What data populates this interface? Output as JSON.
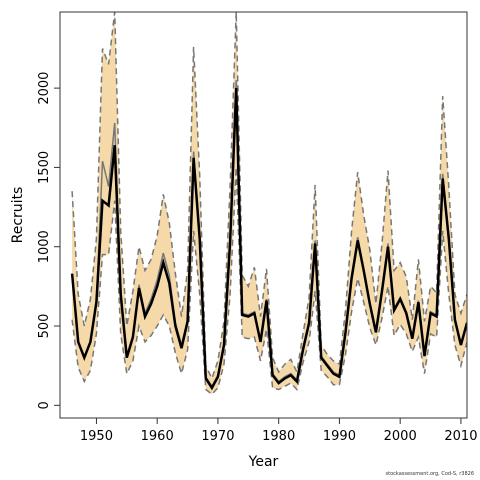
{
  "chart_data": {
    "type": "line",
    "xlabel": "Year",
    "ylabel": "Recruits",
    "xlim": [
      1944,
      2011
    ],
    "ylim": [
      -80,
      2480
    ],
    "x_ticks": [
      1950,
      1960,
      1970,
      1980,
      1990,
      2000,
      2010
    ],
    "y_ticks": [
      0,
      500,
      1000,
      1500,
      2000
    ],
    "grid": false,
    "colors": {
      "band": "#f5d9a8",
      "median": "#000000",
      "mean": "#777777",
      "ci": "#777777"
    },
    "years": [
      1946,
      1947,
      1948,
      1949,
      1950,
      1951,
      1952,
      1953,
      1954,
      1955,
      1956,
      1957,
      1958,
      1959,
      1960,
      1961,
      1962,
      1963,
      1964,
      1965,
      1966,
      1967,
      1968,
      1969,
      1970,
      1971,
      1972,
      1973,
      1974,
      1975,
      1976,
      1977,
      1978,
      1979,
      1980,
      1981,
      1982,
      1983,
      1984,
      1985,
      1986,
      1987,
      1988,
      1989,
      1990,
      1991,
      1992,
      1993,
      1994,
      1995,
      1996,
      1997,
      1998,
      1999,
      2000,
      2001,
      2002,
      2003,
      2004,
      2005,
      2006,
      2007,
      2008,
      2009,
      2010,
      2011
    ],
    "series": [
      {
        "role": "median",
        "values": [
          830,
          400,
          300,
          400,
          650,
          1290,
          1260,
          1640,
          700,
          300,
          430,
          740,
          560,
          640,
          750,
          900,
          770,
          500,
          360,
          530,
          1560,
          1050,
          170,
          110,
          180,
          380,
          1030,
          2000,
          570,
          560,
          580,
          400,
          660,
          190,
          140,
          170,
          190,
          150,
          350,
          520,
          1020,
          300,
          250,
          200,
          180,
          460,
          800,
          1040,
          850,
          640,
          460,
          720,
          1000,
          600,
          670,
          580,
          420,
          650,
          310,
          580,
          560,
          1430,
          1050,
          540,
          380,
          520
        ]
      },
      {
        "role": "mean",
        "values": [
          830,
          400,
          300,
          400,
          650,
          1540,
          1380,
          1780,
          710,
          310,
          440,
          760,
          580,
          670,
          790,
          960,
          820,
          520,
          380,
          540,
          1600,
          1070,
          180,
          120,
          190,
          390,
          1050,
          2050,
          580,
          570,
          590,
          410,
          670,
          200,
          150,
          180,
          200,
          160,
          360,
          530,
          1040,
          310,
          260,
          210,
          190,
          470,
          820,
          1060,
          860,
          650,
          470,
          730,
          1020,
          610,
          680,
          590,
          430,
          660,
          320,
          590,
          570,
          1460,
          1070,
          550,
          380,
          520
        ]
      },
      {
        "role": "ci_lower",
        "values": [
          540,
          240,
          150,
          220,
          450,
          950,
          950,
          1290,
          450,
          200,
          280,
          500,
          400,
          440,
          500,
          570,
          500,
          330,
          200,
          350,
          1100,
          700,
          100,
          70,
          110,
          260,
          700,
          1500,
          430,
          420,
          430,
          280,
          480,
          110,
          100,
          120,
          140,
          100,
          270,
          400,
          720,
          220,
          180,
          130,
          130,
          320,
          590,
          800,
          650,
          490,
          380,
          550,
          750,
          440,
          510,
          450,
          340,
          430,
          200,
          450,
          430,
          1100,
          700,
          380,
          250,
          400
        ]
      },
      {
        "role": "ci_upper",
        "values": [
          1350,
          700,
          500,
          670,
          1050,
          2250,
          2150,
          2480,
          1100,
          500,
          720,
          1000,
          850,
          920,
          1070,
          1330,
          1150,
          830,
          560,
          850,
          2260,
          1450,
          250,
          170,
          280,
          530,
          1380,
          2480,
          820,
          750,
          870,
          560,
          860,
          300,
          210,
          260,
          290,
          210,
          450,
          680,
          1390,
          380,
          320,
          280,
          260,
          600,
          1100,
          1470,
          1200,
          980,
          640,
          1020,
          1480,
          850,
          900,
          810,
          540,
          920,
          530,
          750,
          710,
          1950,
          1380,
          700,
          580,
          700
        ]
      }
    ]
  },
  "credit": "stockassessment.org, Cod-S, r3826"
}
